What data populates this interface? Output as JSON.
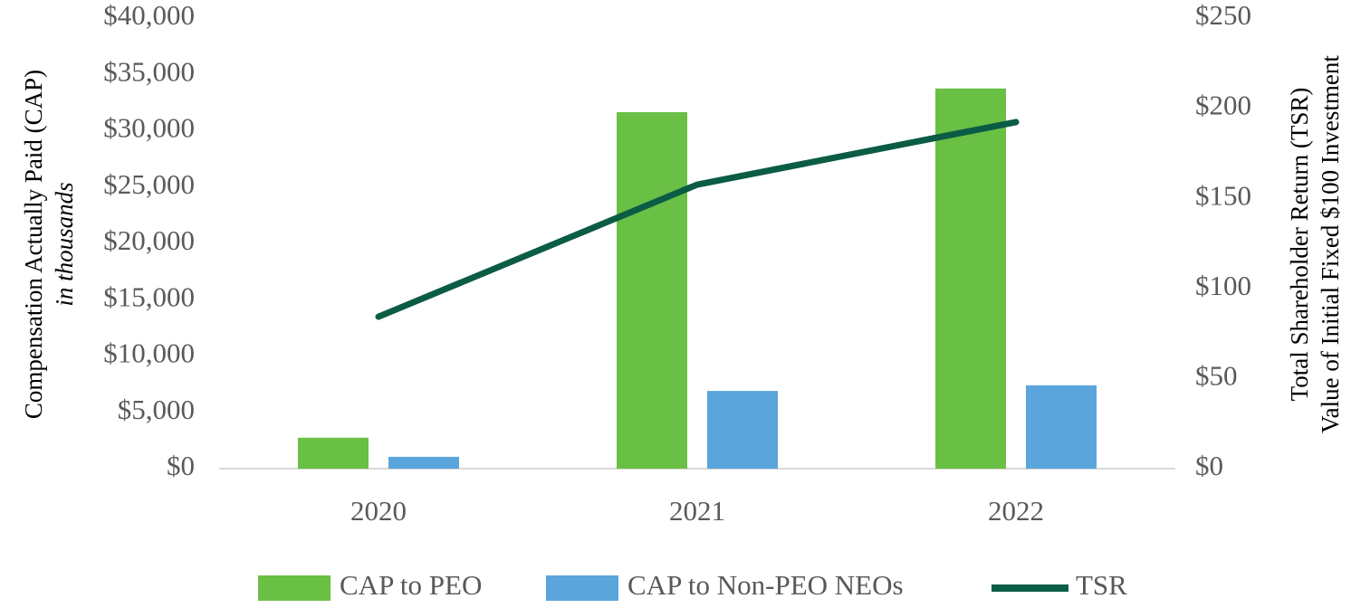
{
  "chart_data": {
    "type": "bar",
    "y_label": "Compensation Actually Paid (CAP)",
    "y_label_note": "in thousands",
    "y2_label": "Total Shareholder Return (TSR)",
    "y2_label_note": "Value of Initial Fixed $100 Investment",
    "categories": [
      "2020",
      "2021",
      "2022"
    ],
    "series": [
      {
        "name": "CAP to PEO",
        "type": "bar",
        "color": "#6abf45",
        "values": [
          2750,
          31650,
          33750
        ]
      },
      {
        "name": "CAP to Non-PEO NEOs",
        "type": "bar",
        "color": "#5aa5dc",
        "values": [
          1050,
          6900,
          7400
        ]
      },
      {
        "name": "TSR",
        "type": "line",
        "axis": "y2",
        "color": "#0b5c45",
        "values": [
          84.3,
          157.6,
          192.3
        ]
      }
    ],
    "ylim": [
      0,
      40000
    ],
    "yticks": [
      {
        "value": 0,
        "label": "$0"
      },
      {
        "value": 5000,
        "label": "$5,000"
      },
      {
        "value": 10000,
        "label": "$10,000"
      },
      {
        "value": 15000,
        "label": "$15,000"
      },
      {
        "value": 20000,
        "label": "$20,000"
      },
      {
        "value": 25000,
        "label": "$25,000"
      },
      {
        "value": 30000,
        "label": "$30,000"
      },
      {
        "value": 35000,
        "label": "$35,000"
      },
      {
        "value": 40000,
        "label": "$40,000"
      }
    ],
    "y2lim": [
      0,
      250
    ],
    "y2ticks": [
      {
        "value": 0,
        "label": "$0"
      },
      {
        "value": 50,
        "label": "$50"
      },
      {
        "value": 100,
        "label": "$100"
      },
      {
        "value": 150,
        "label": "$150"
      },
      {
        "value": 200,
        "label": "$200"
      },
      {
        "value": 250,
        "label": "$250"
      }
    ],
    "grid": false,
    "legend": "bottom"
  }
}
